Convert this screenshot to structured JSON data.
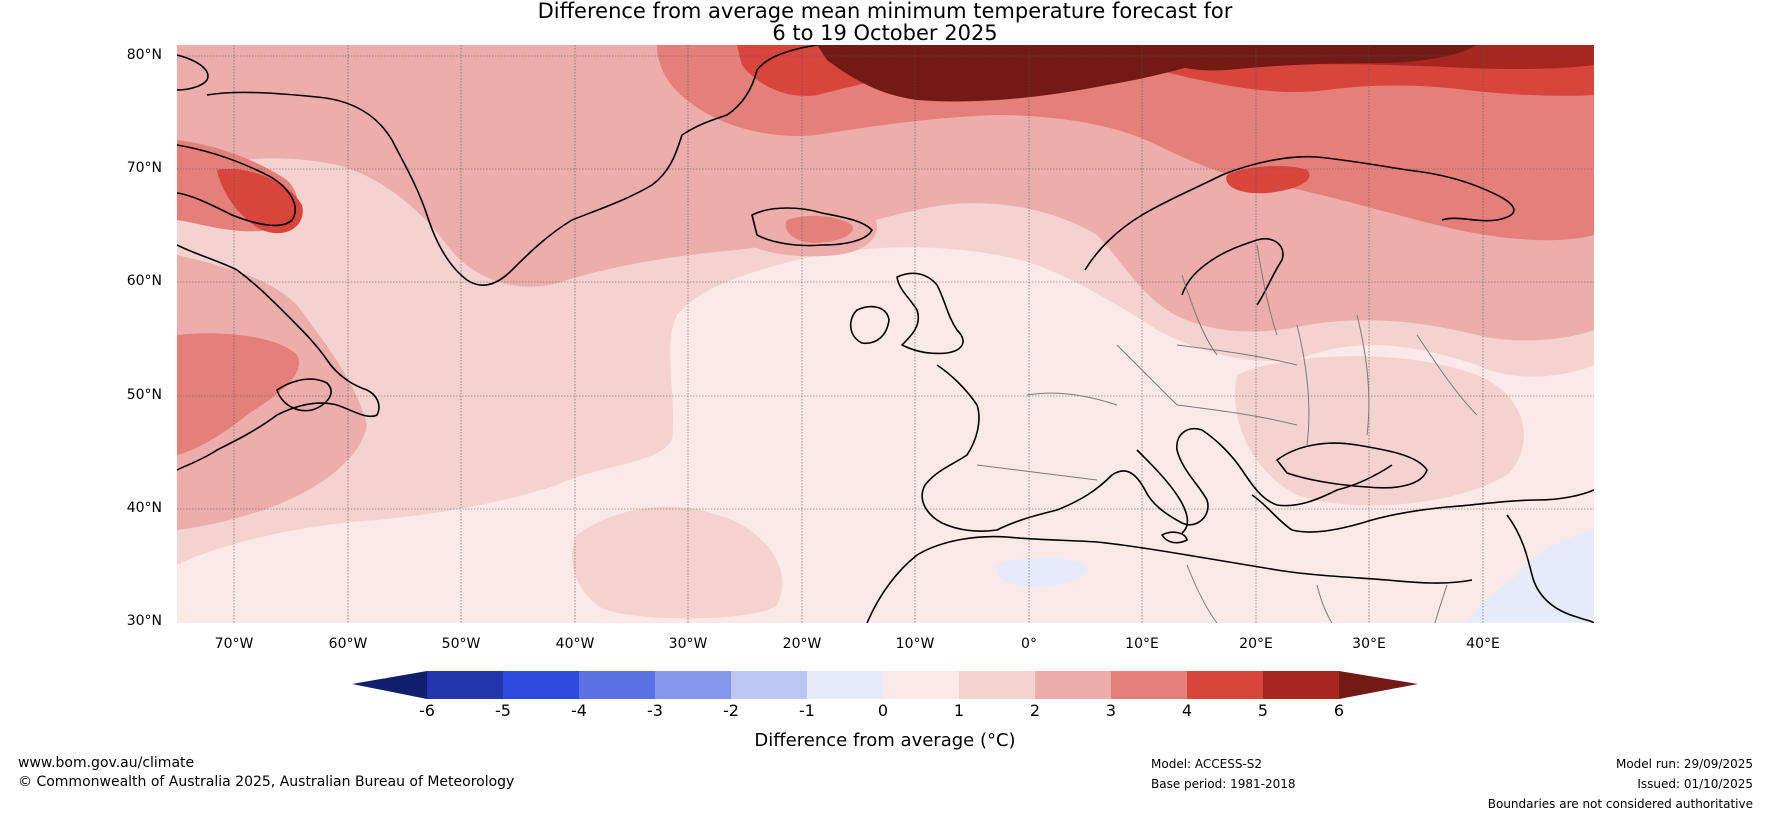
{
  "title": {
    "line1": "Difference from average mean minimum temperature forecast for",
    "line2": "6 to 19 October 2025"
  },
  "map": {
    "lat_labels": [
      "80°N",
      "70°N",
      "60°N",
      "50°N",
      "40°N",
      "30°N"
    ],
    "lon_labels": [
      "70°W",
      "60°W",
      "50°W",
      "40°W",
      "30°W",
      "20°W",
      "10°W",
      "0°",
      "10°E",
      "20°E",
      "30°E",
      "40°E"
    ],
    "lat_range": [
      30,
      81
    ],
    "lon_range": [
      -75,
      50
    ],
    "features": [
      "Greenland",
      "Iceland",
      "Scandinavia",
      "British Isles",
      "Europe",
      "North Africa",
      "Labrador",
      "Newfoundland"
    ]
  },
  "colorbar": {
    "ticks": [
      "-6",
      "-5",
      "-4",
      "-3",
      "-2",
      "-1",
      "0",
      "1",
      "2",
      "3",
      "4",
      "5",
      "6"
    ],
    "colors": [
      "#10206e",
      "#2336ad",
      "#2d49de",
      "#5a72e6",
      "#8597eb",
      "#bdc7f3",
      "#e6ebfc",
      "#fbe9e7",
      "#f4d2d0",
      "#ecadab",
      "#e47f7a",
      "#d8453d",
      "#a82620",
      "#741a14"
    ],
    "label": "Difference from average (°C)"
  },
  "footer": {
    "website": "www.bom.gov.au/climate",
    "copyright": "© Commonwealth of Australia 2025, Australian Bureau of Meteorology",
    "model": "Model: ACCESS-S2",
    "base_period": "Base period: 1981-2018",
    "model_run": "Model run: 29/09/2025",
    "issued": "Issued: 01/10/2025",
    "disclaimer": "Boundaries are not considered authoritative"
  }
}
